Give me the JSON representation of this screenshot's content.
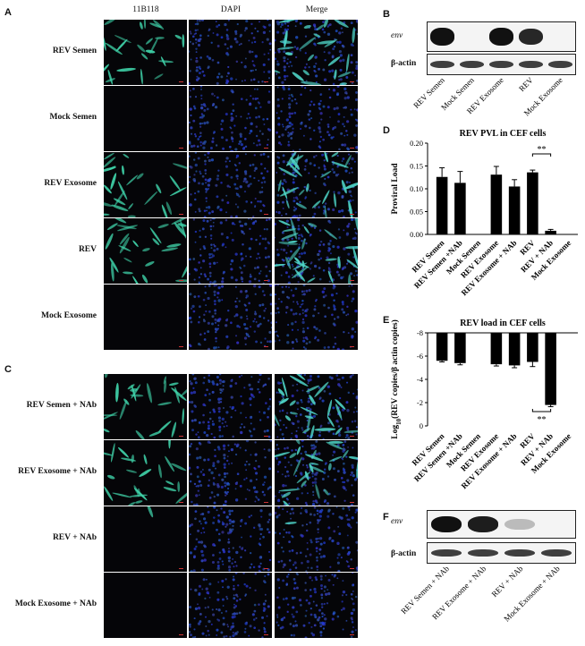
{
  "panel_letters": {
    "A": "A",
    "B": "B",
    "C": "C",
    "D": "D",
    "E": "E",
    "F": "F"
  },
  "column_headers": [
    "11B118",
    "DAPI",
    "Merge"
  ],
  "panelA_rows": [
    "REV Semen",
    "Mock Semen",
    "REV Exosome",
    "REV",
    "Mock Exosome"
  ],
  "panelC_rows": [
    "REV Semen + NAb",
    "REV Exosome + NAb",
    "REV + NAb",
    "Mock Exosome + NAb"
  ],
  "blotB": {
    "gene_label": "env",
    "control_label": "β-actin",
    "lanes": [
      "REV Semen",
      "Mock Semen",
      "REV Exosome",
      "REV",
      "Mock Exosome"
    ],
    "env_intensity": [
      1.0,
      0.0,
      1.0,
      0.9,
      0.0
    ]
  },
  "blotF": {
    "gene_label": "env",
    "control_label": "β-actin",
    "lanes": [
      "REV Semen + NAb",
      "REV Exosome + NAb",
      "REV + NAb",
      "Mock Exosome + NAb"
    ],
    "env_intensity": [
      1.0,
      0.95,
      0.25,
      0.0
    ]
  },
  "chart_data": [
    {
      "type": "bar",
      "title": "REV PVL in CEF cells",
      "ylabel": "Proviral Load",
      "ylim": [
        0,
        0.2
      ],
      "yticks": [
        "0.00",
        "0.05",
        "0.10",
        "0.15",
        "0.20"
      ],
      "categories": [
        "REV Semen",
        "REV Semen +NAb",
        "Mock Semen",
        "REV Exosome",
        "REV Exosome + NAb",
        "REV",
        "REV + NAb",
        "Mock Exosome"
      ],
      "values": [
        0.126,
        0.113,
        0,
        0.131,
        0.105,
        0.136,
        0.008,
        0
      ],
      "errors": [
        0.02,
        0.025,
        0,
        0.018,
        0.015,
        0.005,
        0.003,
        0
      ],
      "annotation": "**"
    },
    {
      "type": "bar",
      "title": "REV load in CEF cells",
      "ylabel": "Log10(REV copies/β actin copies)",
      "ylabel_parts": {
        "pre": "Log",
        "sub": "10",
        "post": "(REV copies/β actin copies)"
      },
      "ylim": [
        -8,
        0
      ],
      "yticks": [
        "0",
        "-2",
        "-4",
        "-6",
        "-8"
      ],
      "categories": [
        "REV Semen",
        "REV Semen +NAb",
        "Mock Semen",
        "REV Exosome",
        "REV Exosome + NAb",
        "REV",
        "REV + NAb",
        "Mock Exosome"
      ],
      "values": [
        -2.4,
        -2.6,
        0,
        -2.7,
        -2.8,
        -2.5,
        -6.2,
        0
      ],
      "errors": [
        0.1,
        0.15,
        0,
        0.15,
        0.2,
        0.4,
        0.15,
        0
      ],
      "annotation": "**"
    }
  ]
}
